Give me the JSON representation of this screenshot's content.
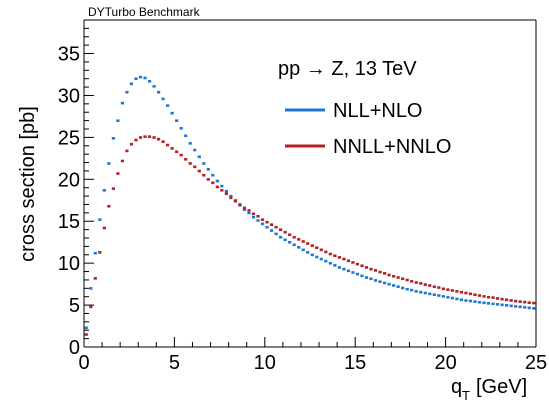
{
  "header": {
    "banner": "DYTurbo Benchmark"
  },
  "chart_data": {
    "type": "line",
    "style": "step-histogram markers",
    "title": "",
    "xlabel": "q_T [GeV]",
    "ylabel": "cross section [pb]",
    "xlim": [
      0,
      25
    ],
    "ylim": [
      0,
      39
    ],
    "x_ticks": [
      0,
      5,
      10,
      15,
      20,
      25
    ],
    "y_ticks": [
      0,
      5,
      10,
      15,
      20,
      25,
      30,
      35
    ],
    "grid": false,
    "annotation": "pp → Z, 13 TeV",
    "legend_position": "top-right",
    "bin_width": 0.25,
    "x": [
      0.125,
      0.375,
      0.625,
      0.875,
      1.125,
      1.375,
      1.625,
      1.875,
      2.125,
      2.375,
      2.625,
      2.875,
      3.125,
      3.375,
      3.625,
      3.875,
      4.125,
      4.375,
      4.625,
      4.875,
      5.125,
      5.375,
      5.625,
      5.875,
      6.125,
      6.375,
      6.625,
      6.875,
      7.125,
      7.375,
      7.625,
      7.875,
      8.125,
      8.375,
      8.625,
      8.875,
      9.125,
      9.375,
      9.625,
      9.875,
      10.125,
      10.375,
      10.625,
      10.875,
      11.125,
      11.375,
      11.625,
      11.875,
      12.125,
      12.375,
      12.625,
      12.875,
      13.125,
      13.375,
      13.625,
      13.875,
      14.125,
      14.375,
      14.625,
      14.875,
      15.125,
      15.375,
      15.625,
      15.875,
      16.125,
      16.375,
      16.625,
      16.875,
      17.125,
      17.375,
      17.625,
      17.875,
      18.125,
      18.375,
      18.625,
      18.875,
      19.125,
      19.375,
      19.625,
      19.875,
      20.125,
      20.375,
      20.625,
      20.875,
      21.125,
      21.375,
      21.625,
      21.875,
      22.125,
      22.375,
      22.625,
      22.875,
      23.125,
      23.375,
      23.625,
      23.875,
      24.125,
      24.375,
      24.625,
      24.875
    ],
    "series": [
      {
        "name": "NLL+NLO",
        "color": "#1f77d4",
        "values": [
          2.3,
          7.0,
          11.2,
          15.2,
          18.7,
          21.9,
          24.9,
          27.0,
          29.1,
          30.4,
          31.4,
          32.0,
          32.2,
          32.1,
          31.7,
          31.1,
          30.4,
          29.6,
          28.8,
          27.9,
          27.0,
          26.1,
          25.2,
          24.3,
          23.5,
          22.7,
          21.9,
          21.2,
          20.5,
          19.8,
          19.2,
          18.6,
          18.0,
          17.5,
          16.9,
          16.4,
          16.0,
          15.5,
          15.1,
          14.7,
          14.3,
          13.9,
          13.5,
          13.1,
          12.8,
          12.5,
          12.2,
          11.9,
          11.6,
          11.3,
          11.0,
          10.75,
          10.5,
          10.25,
          10.0,
          9.75,
          9.5,
          9.3,
          9.1,
          8.9,
          8.7,
          8.5,
          8.3,
          8.15,
          7.95,
          7.8,
          7.65,
          7.5,
          7.35,
          7.2,
          7.05,
          6.9,
          6.8,
          6.65,
          6.55,
          6.45,
          6.35,
          6.25,
          6.15,
          6.05,
          5.95,
          5.85,
          5.75,
          5.65,
          5.55,
          5.5,
          5.42,
          5.35,
          5.28,
          5.22,
          5.16,
          5.1,
          5.04,
          4.98,
          4.92,
          4.86,
          4.8,
          4.74,
          4.68,
          4.62
        ]
      },
      {
        "name": "NNLL+NNLO",
        "color": "#b22222",
        "values": [
          1.5,
          4.8,
          8.2,
          11.3,
          14.2,
          16.8,
          18.9,
          20.7,
          22.2,
          23.4,
          24.2,
          24.7,
          25.0,
          25.1,
          25.1,
          25.0,
          24.8,
          24.5,
          24.1,
          23.7,
          23.3,
          22.9,
          22.4,
          21.9,
          21.5,
          21.0,
          20.5,
          20.0,
          19.6,
          19.1,
          18.7,
          18.3,
          17.8,
          17.4,
          17.0,
          16.6,
          16.3,
          15.9,
          15.6,
          15.2,
          14.9,
          14.6,
          14.3,
          14.0,
          13.7,
          13.4,
          13.1,
          12.85,
          12.6,
          12.35,
          12.1,
          11.85,
          11.6,
          11.35,
          11.1,
          10.9,
          10.7,
          10.5,
          10.3,
          10.1,
          9.9,
          9.7,
          9.5,
          9.3,
          9.15,
          8.95,
          8.8,
          8.6,
          8.45,
          8.3,
          8.15,
          8.0,
          7.85,
          7.7,
          7.6,
          7.45,
          7.35,
          7.2,
          7.1,
          6.95,
          6.85,
          6.75,
          6.65,
          6.55,
          6.45,
          6.35,
          6.25,
          6.15,
          6.05,
          5.95,
          5.9,
          5.8,
          5.72,
          5.64,
          5.56,
          5.48,
          5.42,
          5.36,
          5.3,
          5.25
        ]
      }
    ]
  }
}
